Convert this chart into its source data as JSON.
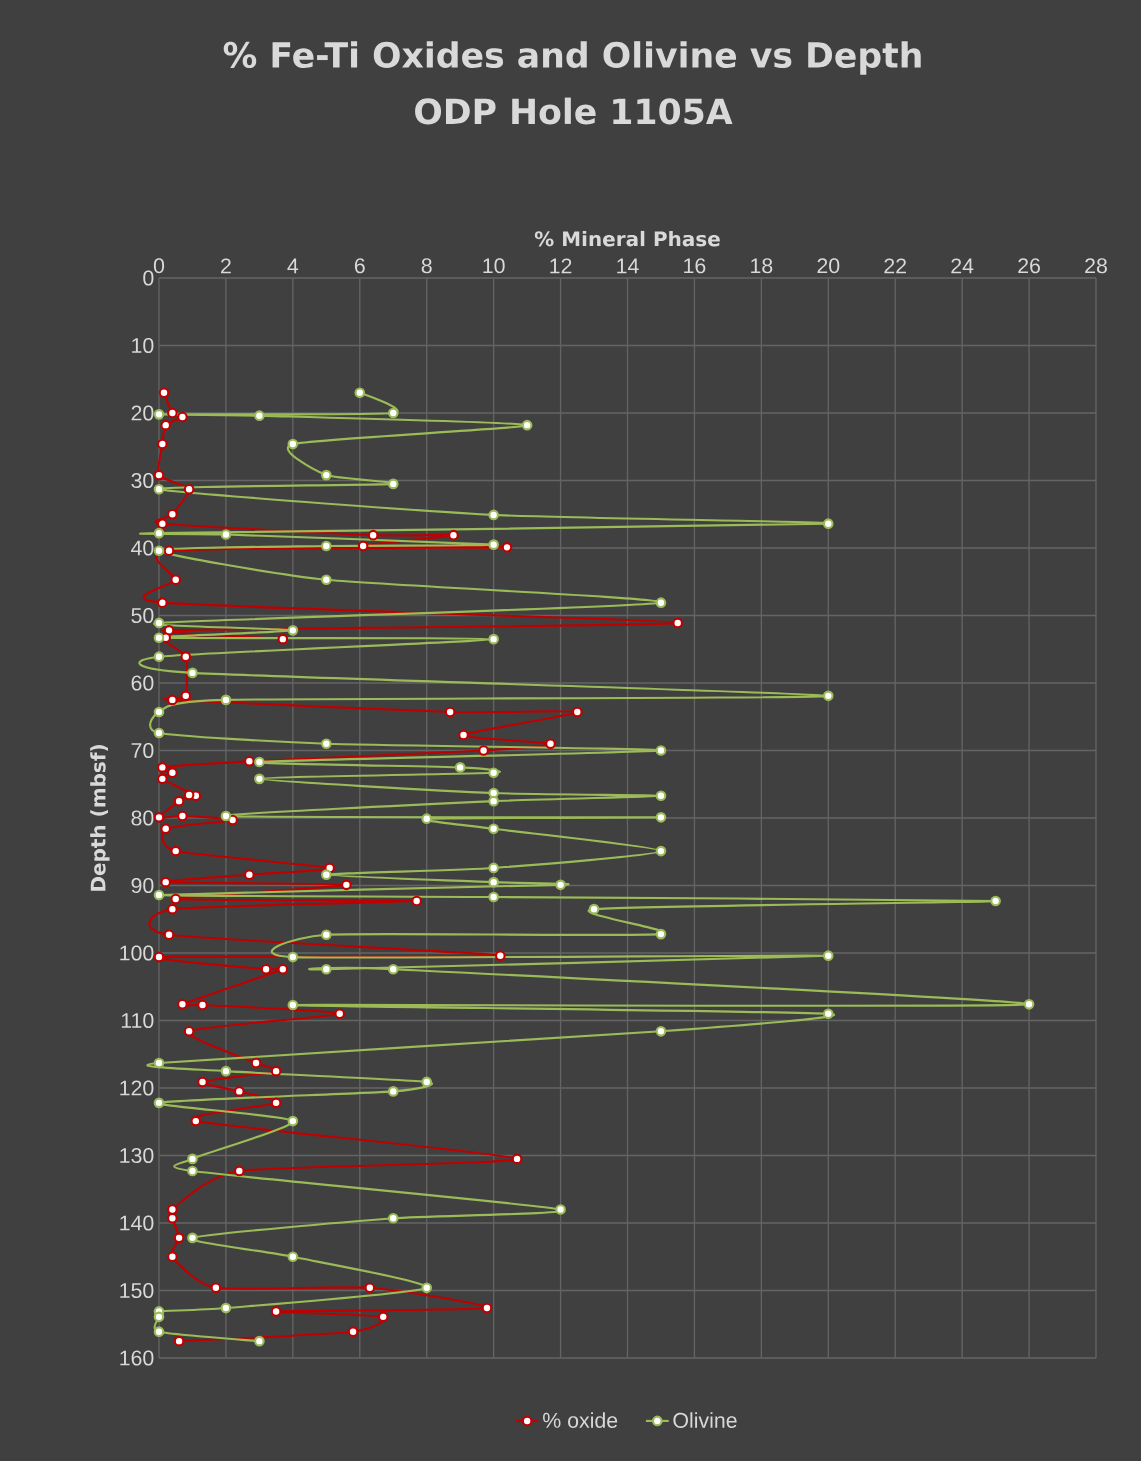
{
  "chart_data": {
    "type": "line",
    "title": "% Fe-Ti Oxides and Olivine vs Depth",
    "subtitle": "ODP Hole 1105A",
    "xlabel": "% Mineral Phase",
    "ylabel": "Depth (mbsf)",
    "xlim": [
      0,
      28
    ],
    "xticks": [
      0,
      2,
      4,
      6,
      8,
      10,
      12,
      14,
      16,
      18,
      20,
      22,
      24,
      26,
      28
    ],
    "ylim": [
      160,
      0
    ],
    "yticks": [
      0,
      10,
      20,
      30,
      40,
      50,
      60,
      70,
      80,
      90,
      100,
      110,
      120,
      130,
      140,
      150,
      160
    ],
    "grid": true,
    "legend": "bottom",
    "marker": "circle",
    "line_style": "solid",
    "series": [
      {
        "name": "% oxide",
        "color": "#c00000",
        "x": [
          0.15,
          0.4,
          0.7,
          0.2,
          0.1,
          0,
          0.9,
          0.4,
          0.1,
          6.4,
          8.8,
          6.1,
          10.4,
          0.3,
          0.5,
          0.1,
          15.5,
          0.3,
          3.7,
          0.2,
          0.8,
          0.8,
          0.4,
          8.7,
          12.5,
          9.1,
          11.7,
          9.7,
          2.7,
          0.1,
          0.4,
          0.1,
          1.1,
          0.9,
          0.6,
          0,
          0.7,
          2.2,
          0.2,
          0.5,
          5.1,
          2.7,
          0.2,
          5.6,
          0.5,
          7.7,
          0.4,
          0.3,
          10.2,
          0,
          3.2,
          3.7,
          0.7,
          1.3,
          5.4,
          0.9,
          2.9,
          3.5,
          1.3,
          2.4,
          3.5,
          1.1,
          10.7,
          2.4,
          0.4,
          0.4,
          0.6,
          0.4,
          1.7,
          6.3,
          9.8,
          3.5,
          6.7,
          5.8,
          0.6
        ],
        "values": [
          17.0,
          20.0,
          20.6,
          21.8,
          24.6,
          29.2,
          31.3,
          35.0,
          36.4,
          38.1,
          38.1,
          39.7,
          39.9,
          40.4,
          44.7,
          48.1,
          51.1,
          52.2,
          53.5,
          53.3,
          56.1,
          61.9,
          62.5,
          64.3,
          64.3,
          67.7,
          69.0,
          70.0,
          71.6,
          72.5,
          73.3,
          74.2,
          76.7,
          76.6,
          77.5,
          79.9,
          79.7,
          80.3,
          81.6,
          84.9,
          87.4,
          88.4,
          89.5,
          89.9,
          92.0,
          92.3,
          93.5,
          97.3,
          100.4,
          100.6,
          102.4,
          102.4,
          107.6,
          107.7,
          109.0,
          111.6,
          116.3,
          117.5,
          119.1,
          120.5,
          122.2,
          124.9,
          130.5,
          132.3,
          138.0,
          139.3,
          142.2,
          145.0,
          149.6,
          149.6,
          152.6,
          153.1,
          153.9,
          156.1,
          157.5
        ]
      },
      {
        "name": "Olivine",
        "color": "#9bbb59",
        "x": [
          6,
          7,
          0,
          3,
          11,
          4,
          5,
          7,
          0,
          10,
          20,
          0,
          2,
          10,
          5,
          0,
          5,
          15,
          0,
          4,
          0,
          10,
          0,
          1,
          20,
          2,
          0,
          0,
          5,
          15,
          3,
          9,
          10,
          3,
          10,
          15,
          10,
          2,
          15,
          8,
          10,
          15,
          10,
          5,
          10,
          12,
          0,
          10,
          25,
          13,
          15,
          5,
          4,
          20,
          5,
          7,
          26,
          4,
          20,
          15,
          0,
          2,
          8,
          7,
          0,
          4,
          1,
          1,
          12,
          7,
          1,
          4,
          8,
          2,
          0,
          0,
          0,
          3
        ],
        "values": [
          17.0,
          20.0,
          20.2,
          20.4,
          21.8,
          24.6,
          29.2,
          30.5,
          31.3,
          35.1,
          36.4,
          37.8,
          38.0,
          39.5,
          39.7,
          40.4,
          44.7,
          48.1,
          51.1,
          52.2,
          53.3,
          53.5,
          56.1,
          58.5,
          61.9,
          62.5,
          64.3,
          67.4,
          69.0,
          70.0,
          71.7,
          72.5,
          73.3,
          74.2,
          76.3,
          76.7,
          77.5,
          79.7,
          79.9,
          80.1,
          81.6,
          84.9,
          87.4,
          88.4,
          89.5,
          89.9,
          91.4,
          91.7,
          92.3,
          93.5,
          97.2,
          97.3,
          100.6,
          100.4,
          102.4,
          102.4,
          107.6,
          107.7,
          109.0,
          111.6,
          116.3,
          117.5,
          119.1,
          120.5,
          122.2,
          124.9,
          130.5,
          132.3,
          138.0,
          139.3,
          142.2,
          145.0,
          149.6,
          152.6,
          153.1,
          153.9,
          156.1,
          157.5
        ]
      }
    ]
  }
}
